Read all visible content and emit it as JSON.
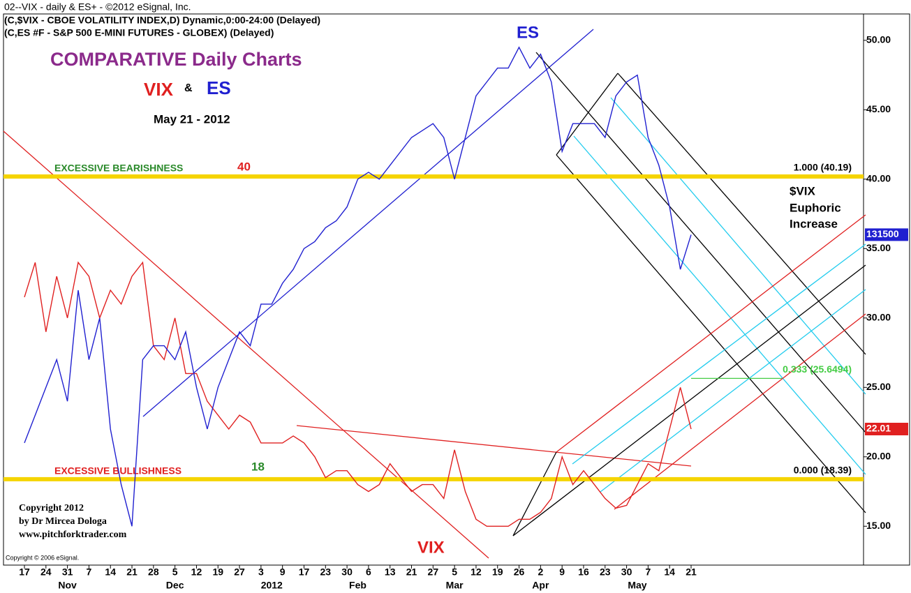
{
  "chart_data": {
    "type": "line",
    "header": [
      "02--VIX - daily & ES+ - ©2012 eSignal, Inc.",
      "(C,$VIX - CBOE VOLATILITY INDEX,D) Dynamic,0:00-24:00 (Delayed)",
      "(C,ES #F - S&P 500 E-MINI FUTURES - GLOBEX)  (Delayed)"
    ],
    "title": "COMPARATIVE Daily Charts",
    "amp": "&",
    "subtitle": "May 21 - 2012",
    "annotations": {
      "bearish": "EXCESSIVE BEARISHNESS",
      "bearish_value": "40",
      "bullish": "EXCESSIVE BULLISHNESS",
      "bullish_value": "18",
      "vix_note": [
        "$VIX",
        "Euphoric",
        "Increase"
      ],
      "copyright": [
        "Copyright 2012",
        "by Dr Mircea Dologa",
        "www.pitchforktrader.com"
      ],
      "esignal": "Copyright © 2006 eSignal.",
      "es_last": "131500",
      "vix_last": "22.01"
    },
    "levels": [
      {
        "value": 40.19,
        "label": "1.000 (40.19)",
        "color": "#f5d400"
      },
      {
        "value": 18.39,
        "label": "0.000 (18.39)",
        "color": "#f5d400"
      },
      {
        "value": 25.6494,
        "label": "0.333 (25.6494)",
        "color": "#44cc44"
      }
    ],
    "categories": [
      "17",
      null,
      "24",
      null,
      "31",
      null,
      "7",
      null,
      "14",
      null,
      "21",
      null,
      "28",
      null,
      "5",
      null,
      "12",
      null,
      "19",
      null,
      "27",
      null,
      "3",
      null,
      "9",
      null,
      "17",
      null,
      "23",
      null,
      "30",
      null,
      "6",
      null,
      "13",
      null,
      "21",
      null,
      "27",
      null,
      "5",
      null,
      "12",
      null,
      "19",
      null,
      "26",
      null,
      "2",
      null,
      "9",
      null,
      "16",
      null,
      "23",
      null,
      "30",
      null,
      "7",
      null,
      "14",
      null,
      "21"
    ],
    "months": [
      {
        "label": "Nov",
        "at": 4
      },
      {
        "label": "Dec",
        "at": 14
      },
      {
        "label": "2012",
        "at": 23
      },
      {
        "label": "Feb",
        "at": 31
      },
      {
        "label": "Mar",
        "at": 40
      },
      {
        "label": "Apr",
        "at": 48
      },
      {
        "label": "May",
        "at": 57
      }
    ],
    "series": [
      {
        "name": "VIX",
        "color": "#e02020",
        "values": [
          31.5,
          34,
          29,
          33,
          30,
          34,
          33,
          30,
          32,
          31,
          33,
          34,
          28,
          27,
          30,
          26,
          26,
          24,
          23,
          22,
          23,
          22.5,
          21,
          21,
          21,
          21.5,
          21,
          20,
          18.5,
          19,
          19,
          18,
          17.5,
          18,
          19.5,
          18.5,
          17.5,
          18,
          18,
          17,
          20.5,
          17.5,
          15.5,
          15,
          15,
          15,
          15.5,
          15.5,
          16,
          17,
          20,
          18,
          19,
          18,
          17,
          16.3,
          16.5,
          18,
          19.5,
          19,
          22,
          25,
          22
        ]
      },
      {
        "name": "ES",
        "color": "#2020d0",
        "values": [
          21,
          23,
          25,
          27,
          24,
          32,
          27,
          30,
          22,
          18,
          15,
          27,
          28,
          28,
          27,
          29,
          25,
          22,
          25,
          27,
          29,
          28,
          31,
          31,
          32.5,
          33.5,
          35,
          35.5,
          36.5,
          37,
          38,
          40,
          40.5,
          40,
          41,
          42,
          43,
          43.5,
          44,
          43,
          40,
          43,
          46,
          47,
          48,
          48,
          49.5,
          48,
          49,
          47,
          42,
          44,
          44,
          44,
          43,
          46,
          47,
          47.5,
          43,
          41,
          38,
          33.5,
          36
        ]
      }
    ],
    "ylim": [
      12.2,
      51.9
    ],
    "yticks": [
      {
        "value": 15,
        "label": "15.00"
      },
      {
        "value": 20,
        "label": "20.00"
      },
      {
        "value": 25,
        "label": "25.00"
      },
      {
        "value": 30,
        "label": "30.00"
      },
      {
        "value": 35,
        "label": "35.00"
      },
      {
        "value": 40,
        "label": "40.00"
      },
      {
        "value": 45,
        "label": "45.00"
      },
      {
        "value": 50,
        "label": "50.00"
      }
    ]
  }
}
